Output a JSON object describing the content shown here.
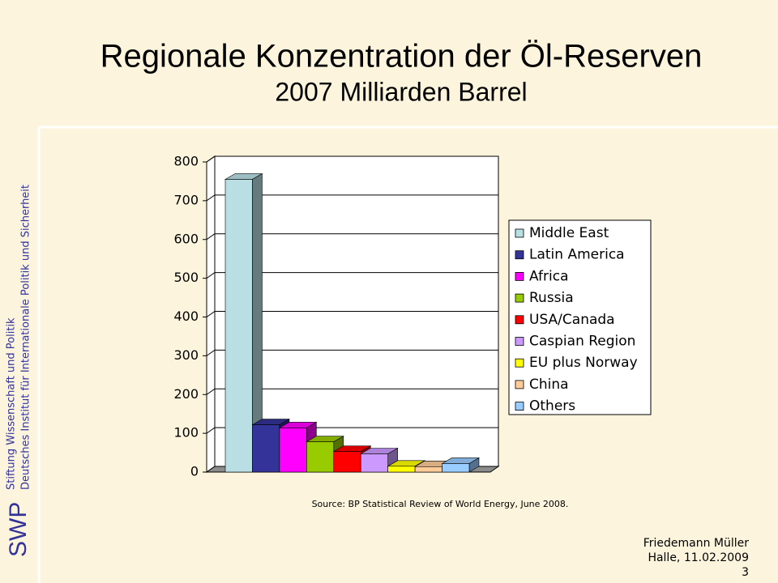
{
  "chart_data": {
    "type": "bar3d",
    "title": "Regionale Konzentration der Öl-Reserven",
    "subtitle": "2007 Milliarden  Barrel",
    "categories": [
      "Middle East",
      "Latin America",
      "Africa",
      "Russia",
      "USA/Canada",
      "Caspian Region",
      "EU plus Norway",
      "China",
      "Others"
    ],
    "values": [
      755,
      122,
      114,
      78,
      53,
      47,
      15,
      14,
      22
    ],
    "colors": [
      "#b9dfe4",
      "#333399",
      "#ff00ff",
      "#99cc00",
      "#ff0000",
      "#cc99ff",
      "#ffff00",
      "#ffcc99",
      "#99ccff"
    ],
    "ylim": [
      0,
      800
    ],
    "yticks": [
      0,
      100,
      200,
      300,
      400,
      500,
      600,
      700,
      800
    ],
    "grid": true,
    "legend": "right",
    "source": "Source: BP Statistical Review of World Energy, June 2008."
  },
  "slide": {
    "logo": "SWP",
    "org_line1": "Stiftung Wissenschaft und Politik",
    "org_line2": "Deutsches Institut für Internationale Politik und Sicherheit",
    "author": "Friedemann Müller",
    "place_date": "Halle, 11.02.2009",
    "page": "3"
  }
}
